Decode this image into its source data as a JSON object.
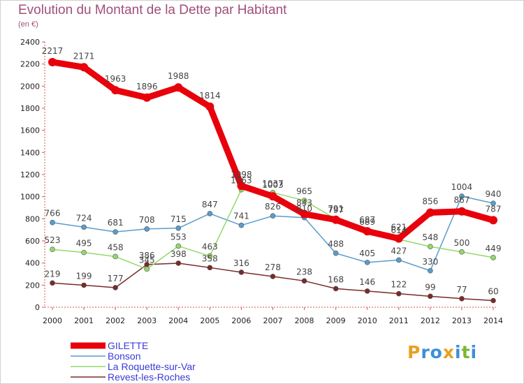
{
  "page": {
    "title": "Evolution du Montant de la Dette par Habitant",
    "unit": "(en €)"
  },
  "logo": {
    "text": "Proxiti",
    "letters": [
      "P",
      "r",
      "o",
      "x",
      "i",
      "t",
      "i"
    ],
    "colors": [
      "#e8a020",
      "#3d8fd8",
      "#3d8fd8",
      "#e8a020",
      "#3d8fd8",
      "#7ab830",
      "#3d8fd8"
    ]
  },
  "chart_data": {
    "type": "line",
    "title": "Evolution du Montant de la Dette par Habitant",
    "subtitle": "(en €)",
    "x": [
      "2000",
      "2001",
      "2002",
      "2003",
      "2004",
      "2005",
      "2006",
      "2007",
      "2008",
      "2009",
      "2010",
      "2011",
      "2012",
      "2013",
      "2014"
    ],
    "yticks": [
      "0",
      "200",
      "400",
      "600",
      "800",
      "1000",
      "1200",
      "1400",
      "1600",
      "1800",
      "2000",
      "2200",
      "2400"
    ],
    "ylim": [
      0,
      2400
    ],
    "grid": false,
    "legend_position": "bottom-left",
    "series": [
      {
        "name": "GILETTE",
        "color": "#e8000b",
        "values": [
          2217,
          2171,
          1963,
          1896,
          1988,
          1814,
          1098,
          1003,
          843,
          791,
          687,
          621,
          856,
          867,
          787
        ],
        "labels": [
          "2217",
          "2171",
          "1963",
          "1896",
          "1988",
          "1814",
          "1098",
          "1003",
          "843",
          "791",
          "687",
          "621",
          "856",
          "867",
          "787"
        ]
      },
      {
        "name": "Bonson",
        "color": "#5a9ccc",
        "values": [
          766,
          724,
          681,
          708,
          715,
          847,
          741,
          826,
          810,
          488,
          405,
          427,
          330,
          1004,
          940
        ],
        "labels": [
          "766",
          "724",
          "681",
          "708",
          "715",
          "847",
          "741",
          "826",
          "810",
          "488",
          "405",
          "427",
          "330",
          "1004",
          "940"
        ]
      },
      {
        "name": "La Roquette-sur-Var",
        "color": "#94d86a",
        "values": [
          523,
          495,
          458,
          345,
          553,
          463,
          1063,
          1037,
          965,
          797,
          689,
          614,
          548,
          500,
          449
        ],
        "labels": [
          "523",
          "495",
          "458",
          "345",
          "553",
          "463",
          "1063",
          "1037",
          "965",
          "797",
          "689",
          "614",
          "548",
          "500",
          "449"
        ]
      },
      {
        "name": "Revest-les-Roches",
        "color": "#7a2a2a",
        "values": [
          219,
          199,
          177,
          386,
          398,
          358,
          316,
          278,
          238,
          168,
          146,
          122,
          99,
          77,
          60
        ],
        "labels": [
          "219",
          "199",
          "177",
          "386",
          "398",
          "358",
          "316",
          "278",
          "238",
          "168",
          "146",
          "122",
          "99",
          "77",
          "60"
        ]
      }
    ]
  }
}
